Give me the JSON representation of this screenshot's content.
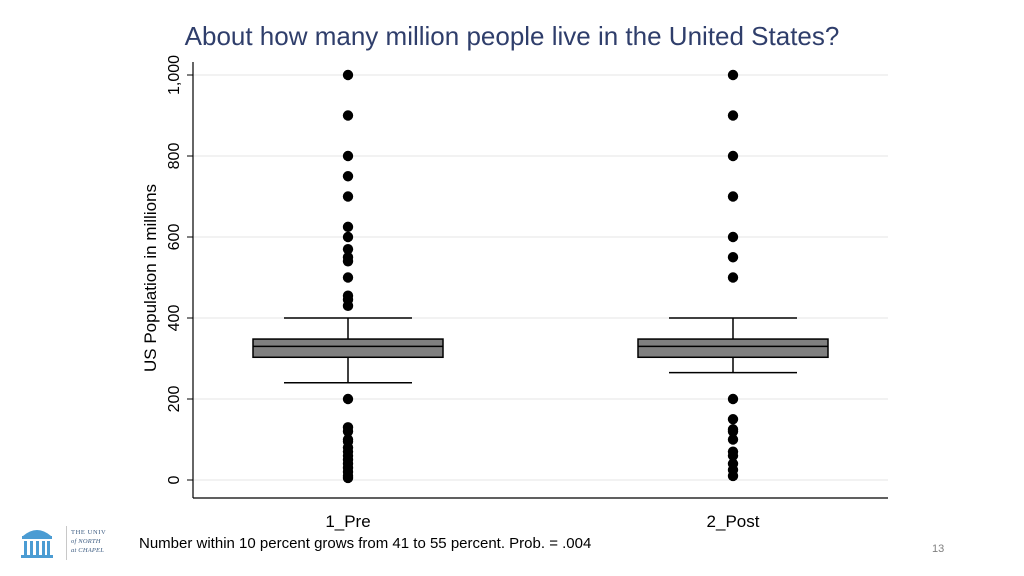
{
  "slide": {
    "title": "About how many million people live in the United States?",
    "caption": "Number within 10 percent grows from 41 to 55 percent. Prob. = .004",
    "page_number": "13"
  },
  "logo": {
    "line1": "THE UNIV",
    "line2": "of NORTH",
    "line3": "at CHAPEL",
    "color": "#4b9cd3"
  },
  "chart_data": {
    "type": "box",
    "title": "",
    "ylabel": "US Population in millions",
    "xlabel": "",
    "ylim": [
      0,
      1000
    ],
    "yticks": [
      0,
      200,
      400,
      600,
      800,
      1000
    ],
    "ytick_labels": [
      "0",
      "200",
      "400",
      "600",
      "800",
      "1,000"
    ],
    "grid": true,
    "box_color": "#808080",
    "groups": [
      {
        "name": "1_Pre",
        "q1": 303,
        "median": 330,
        "q3": 348,
        "whisker_low": 240,
        "whisker_high": 400,
        "outliers": [
          1000,
          900,
          800,
          750,
          700,
          625,
          600,
          570,
          550,
          540,
          500,
          455,
          445,
          430,
          200,
          130,
          120,
          100,
          95,
          80,
          70,
          60,
          50,
          40,
          30,
          20,
          10,
          5
        ]
      },
      {
        "name": "2_Post",
        "q1": 303,
        "median": 330,
        "q3": 348,
        "whisker_low": 265,
        "whisker_high": 400,
        "outliers": [
          1000,
          900,
          800,
          700,
          600,
          550,
          500,
          200,
          150,
          125,
          120,
          100,
          70,
          60,
          40,
          25,
          10
        ]
      }
    ]
  }
}
